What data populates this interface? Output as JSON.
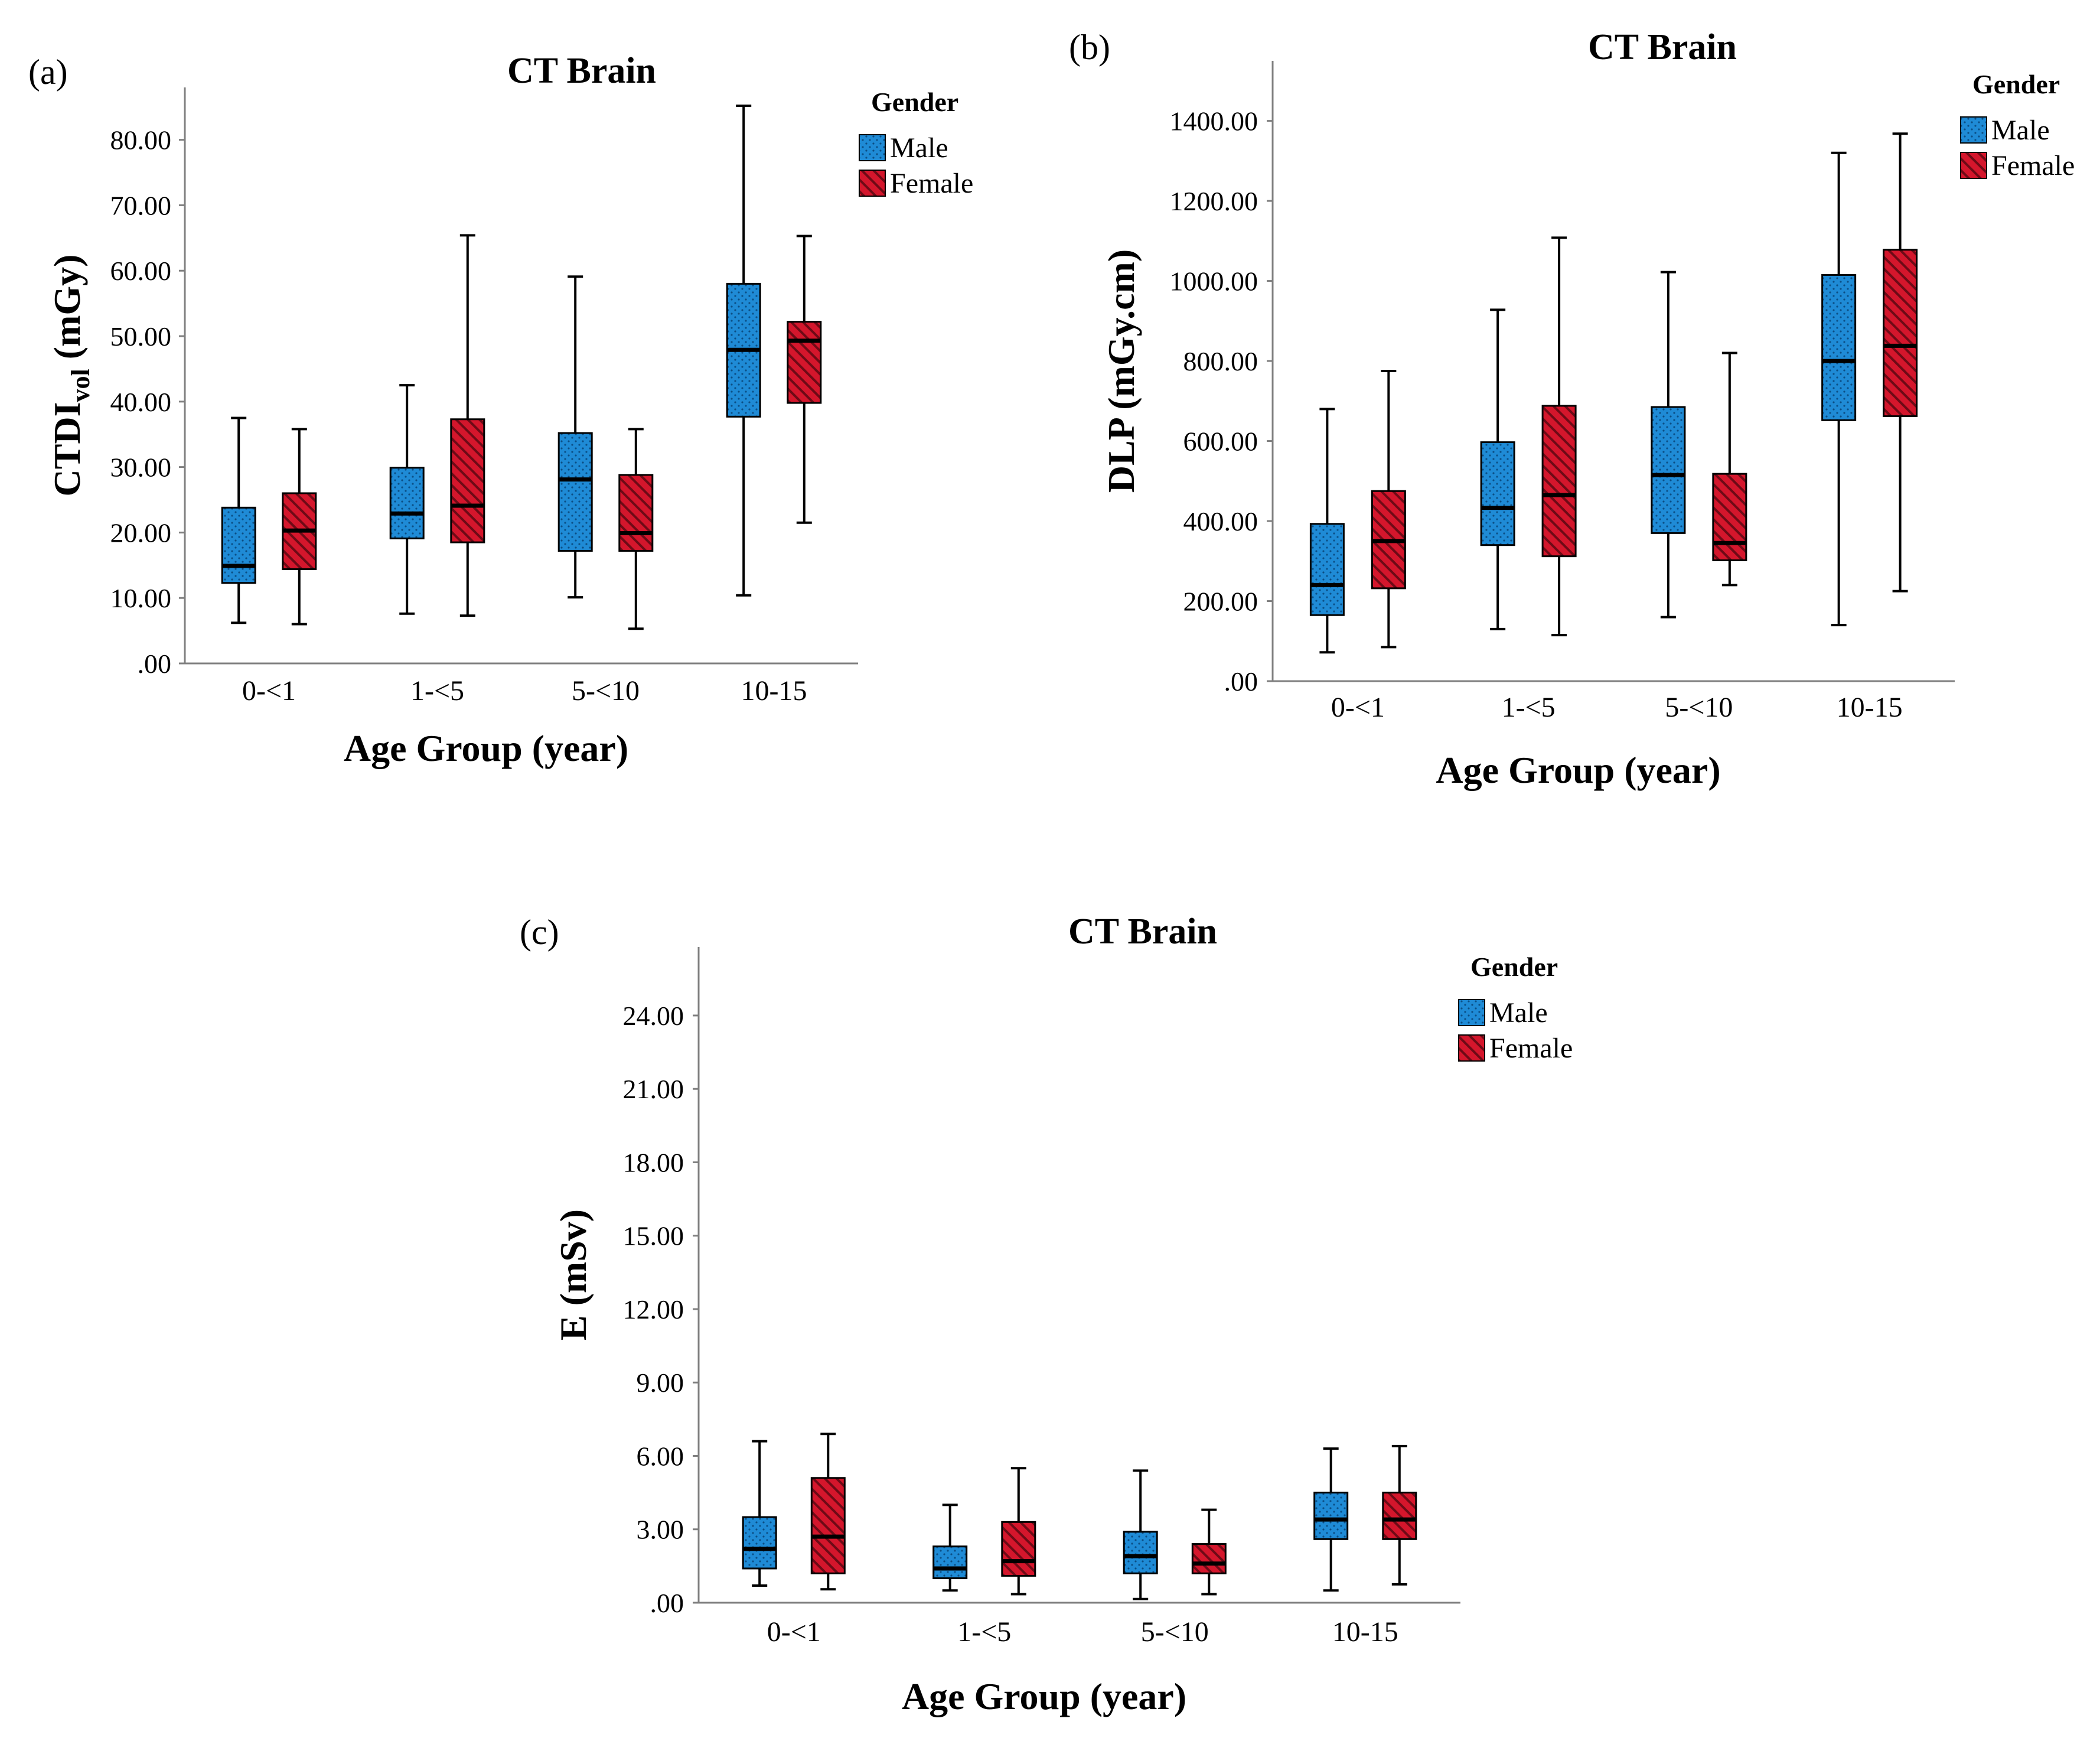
{
  "colors": {
    "male": "#1f8bd6",
    "female": "#d4162c",
    "axis": "#7f7f7f"
  },
  "legend": {
    "title": "Gender",
    "male": "Male",
    "female": "Female"
  },
  "chart_data": [
    {
      "id": "a",
      "panel_label": "(a)",
      "type": "box",
      "title": "CT Brain",
      "xlabel": "Age Group (year)",
      "ylabel_main": "CTDI",
      "ylabel_sub": "vol",
      "ylabel_tail": " (mGy)",
      "categories": [
        "0-<1",
        "1-<5",
        "5-<10",
        "10-15"
      ],
      "ylim": [
        0,
        88
      ],
      "ticks": [
        0,
        10,
        20,
        30,
        40,
        50,
        60,
        70,
        80
      ],
      "tick_labels": [
        ".00",
        "10.00",
        "20.00",
        "30.00",
        "40.00",
        "50.00",
        "60.00",
        "70.00",
        "80.00"
      ],
      "series": [
        {
          "name": "Male",
          "boxes": [
            {
              "min": 6.2,
              "q1": 12.3,
              "median": 14.9,
              "q3": 23.8,
              "max": 37.5
            },
            {
              "min": 7.6,
              "q1": 19.1,
              "median": 22.9,
              "q3": 29.9,
              "max": 42.5
            },
            {
              "min": 10.1,
              "q1": 17.2,
              "median": 28.1,
              "q3": 35.2,
              "max": 59.1
            },
            {
              "min": 10.4,
              "q1": 37.7,
              "median": 47.9,
              "q3": 58.0,
              "max": 85.2
            }
          ]
        },
        {
          "name": "Female",
          "boxes": [
            {
              "min": 6.0,
              "q1": 14.4,
              "median": 20.3,
              "q3": 26.0,
              "max": 35.8
            },
            {
              "min": 7.3,
              "q1": 18.5,
              "median": 24.1,
              "q3": 37.3,
              "max": 65.4
            },
            {
              "min": 5.3,
              "q1": 17.2,
              "median": 19.9,
              "q3": 28.8,
              "max": 35.8
            },
            {
              "min": 21.5,
              "q1": 39.8,
              "median": 49.3,
              "q3": 52.2,
              "max": 65.3
            }
          ]
        }
      ]
    },
    {
      "id": "b",
      "panel_label": "(b)",
      "type": "box",
      "title": "CT Brain",
      "xlabel": "Age Group (year)",
      "ylabel_main": "DLP (mGy.cm)",
      "ylabel_sub": "",
      "ylabel_tail": "",
      "categories": [
        "0-<1",
        "1-<5",
        "5-<10",
        "10-15"
      ],
      "ylim": [
        0,
        1550
      ],
      "ticks": [
        0,
        200,
        400,
        600,
        800,
        1000,
        1200,
        1400
      ],
      "tick_labels": [
        ".00",
        "200.00",
        "400.00",
        "600.00",
        "800.00",
        "1000.00",
        "1200.00",
        "1400.00"
      ],
      "series": [
        {
          "name": "Male",
          "boxes": [
            {
              "min": 72,
              "q1": 165,
              "median": 240,
              "q3": 393,
              "max": 680
            },
            {
              "min": 130,
              "q1": 340,
              "median": 433,
              "q3": 597,
              "max": 928
            },
            {
              "min": 160,
              "q1": 370,
              "median": 515,
              "q3": 685,
              "max": 1022
            },
            {
              "min": 140,
              "q1": 652,
              "median": 800,
              "q3": 1015,
              "max": 1320
            }
          ]
        },
        {
          "name": "Female",
          "boxes": [
            {
              "min": 85,
              "q1": 232,
              "median": 350,
              "q3": 475,
              "max": 775
            },
            {
              "min": 115,
              "q1": 312,
              "median": 465,
              "q3": 688,
              "max": 1108
            },
            {
              "min": 240,
              "q1": 302,
              "median": 345,
              "q3": 518,
              "max": 820
            },
            {
              "min": 225,
              "q1": 662,
              "median": 838,
              "q3": 1078,
              "max": 1368
            }
          ]
        }
      ]
    },
    {
      "id": "c",
      "panel_label": "(c)",
      "type": "box",
      "title": "CT Brain",
      "xlabel": "Age Group (year)",
      "ylabel_main": "E (mSv)",
      "ylabel_sub": "",
      "ylabel_tail": "",
      "categories": [
        "0-<1",
        "1-<5",
        "5-<10",
        "10-15"
      ],
      "ylim": [
        0,
        26.8
      ],
      "ticks": [
        0,
        3,
        6,
        9,
        12,
        15,
        18,
        21,
        24
      ],
      "tick_labels": [
        ".00",
        "3.00",
        "6.00",
        "9.00",
        "12.00",
        "15.00",
        "18.00",
        "21.00",
        "24.00"
      ],
      "series": [
        {
          "name": "Male",
          "boxes": [
            {
              "min": 0.7,
              "q1": 1.4,
              "median": 2.2,
              "q3": 3.5,
              "max": 6.6
            },
            {
              "min": 0.5,
              "q1": 1.0,
              "median": 1.4,
              "q3": 2.3,
              "max": 4.0
            },
            {
              "min": 0.15,
              "q1": 1.2,
              "median": 1.9,
              "q3": 2.9,
              "max": 5.4
            },
            {
              "min": 0.5,
              "q1": 2.6,
              "median": 3.4,
              "q3": 4.5,
              "max": 6.3
            }
          ]
        },
        {
          "name": "Female",
          "boxes": [
            {
              "min": 0.55,
              "q1": 1.2,
              "median": 2.7,
              "q3": 5.1,
              "max": 6.9
            },
            {
              "min": 0.35,
              "q1": 1.1,
              "median": 1.7,
              "q3": 3.3,
              "max": 5.5
            },
            {
              "min": 0.35,
              "q1": 1.2,
              "median": 1.6,
              "q3": 2.4,
              "max": 3.8
            },
            {
              "min": 0.75,
              "q1": 2.6,
              "median": 3.4,
              "q3": 4.5,
              "max": 6.4
            }
          ]
        }
      ]
    }
  ]
}
